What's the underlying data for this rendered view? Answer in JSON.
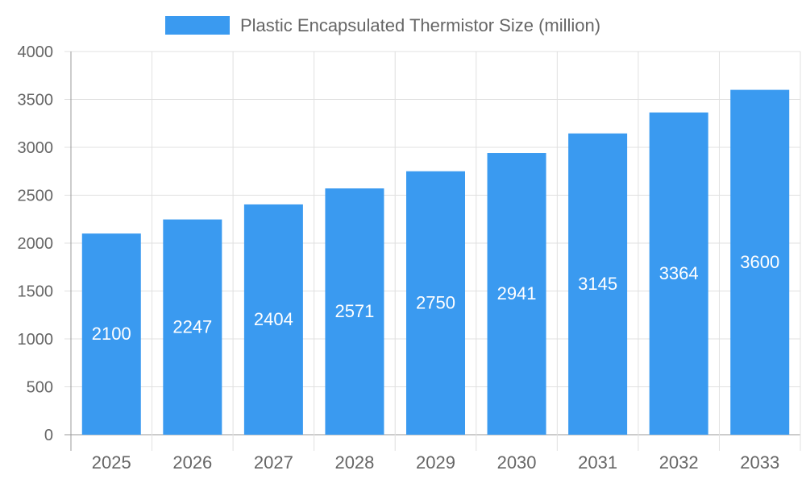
{
  "chart_data": {
    "type": "bar",
    "categories": [
      "2025",
      "2026",
      "2027",
      "2028",
      "2029",
      "2030",
      "2031",
      "2032",
      "2033"
    ],
    "series": [
      {
        "name": "Plastic Encapsulated Thermistor Size (million)",
        "values": [
          2100,
          2247,
          2404,
          2571,
          2750,
          2941,
          3145,
          3364,
          3600
        ]
      }
    ],
    "ylim": [
      0,
      4000
    ],
    "yticks": [
      0,
      500,
      1000,
      1500,
      2000,
      2500,
      3000,
      3500,
      4000
    ],
    "grid": true,
    "legend": "top",
    "colors": {
      "bar": "#3a9af0",
      "grid": "#e0e0e0",
      "axis": "#999999",
      "text": "#666666",
      "label": "#ffffff"
    }
  }
}
